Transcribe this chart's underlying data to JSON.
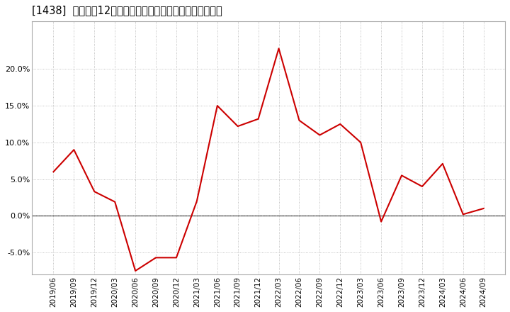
{
  "title": "[1438]  売上高の12か月移動合計の対前年同期増減率の推移",
  "line_color": "#cc0000",
  "background_color": "#ffffff",
  "plot_bg_color": "#ffffff",
  "grid_color": "#b0b0b0",
  "dates": [
    "2019/06",
    "2019/09",
    "2019/12",
    "2020/03",
    "2020/06",
    "2020/09",
    "2020/12",
    "2021/03",
    "2021/06",
    "2021/09",
    "2021/12",
    "2022/03",
    "2022/06",
    "2022/09",
    "2022/12",
    "2023/03",
    "2023/06",
    "2023/09",
    "2023/12",
    "2024/03",
    "2024/06",
    "2024/09"
  ],
  "values": [
    0.06,
    0.09,
    0.033,
    0.019,
    -0.075,
    -0.057,
    -0.057,
    0.02,
    0.15,
    0.122,
    0.132,
    0.228,
    0.13,
    0.11,
    0.125,
    0.1,
    -0.008,
    0.055,
    0.04,
    0.071,
    0.002,
    0.01
  ],
  "ylim": [
    -0.08,
    0.265
  ],
  "yticks": [
    -0.05,
    0.0,
    0.05,
    0.1,
    0.15,
    0.2
  ],
  "title_fontsize": 10.5,
  "tick_fontsize": 7.5,
  "ytick_fontsize": 8.0
}
